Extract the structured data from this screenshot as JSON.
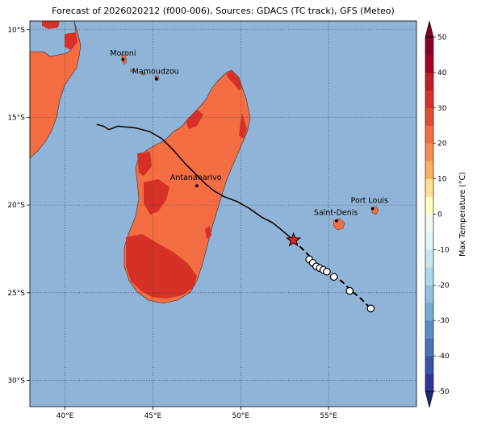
{
  "title": "Forecast of 2026020212 (f000-006), Sources: GDACS (TC track), GFS (Meteo)",
  "map": {
    "lon_range": [
      38,
      60
    ],
    "lat_range": [
      -31.5,
      -9.5
    ],
    "x_ticks": [
      {
        "value": 40,
        "label": "40°E"
      },
      {
        "value": 45,
        "label": "45°E"
      },
      {
        "value": 50,
        "label": "50°E"
      },
      {
        "value": 55,
        "label": "55°E"
      }
    ],
    "y_ticks": [
      {
        "value": -10,
        "label": "10°S"
      },
      {
        "value": -15,
        "label": "15°S"
      },
      {
        "value": -20,
        "label": "20°S"
      },
      {
        "value": -25,
        "label": "25°S"
      },
      {
        "value": -30,
        "label": "30°S"
      }
    ],
    "gridlines": true,
    "ocean_color": "#90b4d8",
    "land_warm_color": "#f46d43",
    "land_hot_color": "#d73027"
  },
  "cities": [
    {
      "name": "Moroni",
      "lon": 43.3,
      "lat": -11.7
    },
    {
      "name": "Mamoudzou",
      "lon": 45.2,
      "lat": -12.8
    },
    {
      "name": "Antananarivo",
      "lon": 47.5,
      "lat": -18.9
    },
    {
      "name": "Saint-Denis",
      "lon": 55.45,
      "lat": -20.9
    },
    {
      "name": "Port Louis",
      "lon": 57.5,
      "lat": -20.2
    }
  ],
  "track_past": [
    [
      41.8,
      -15.4
    ],
    [
      42.2,
      -15.5
    ],
    [
      42.5,
      -15.7
    ],
    [
      43.0,
      -15.5
    ],
    [
      44.0,
      -15.6
    ],
    [
      44.8,
      -15.8
    ],
    [
      45.5,
      -16.2
    ],
    [
      46.2,
      -16.9
    ],
    [
      46.9,
      -17.7
    ],
    [
      47.5,
      -18.3
    ],
    [
      48.0,
      -18.8
    ],
    [
      48.5,
      -19.2
    ],
    [
      49.0,
      -19.5
    ],
    [
      49.8,
      -19.8
    ],
    [
      50.5,
      -20.2
    ],
    [
      51.2,
      -20.7
    ],
    [
      51.8,
      -21.0
    ],
    [
      52.3,
      -21.4
    ],
    [
      53.0,
      -22.0
    ]
  ],
  "current_position": [
    53.0,
    -22.0
  ],
  "track_forecast": [
    [
      53.0,
      -22.0
    ],
    [
      53.6,
      -22.6
    ],
    [
      54.0,
      -23.0
    ],
    [
      54.3,
      -23.4
    ],
    [
      54.6,
      -23.7
    ],
    [
      55.0,
      -23.9
    ],
    [
      55.4,
      -24.1
    ],
    [
      55.8,
      -24.4
    ],
    [
      56.3,
      -24.9
    ],
    [
      56.8,
      -25.3
    ],
    [
      57.3,
      -25.8
    ]
  ],
  "forecast_points": [
    [
      53.9,
      -23.1
    ],
    [
      54.1,
      -23.3
    ],
    [
      54.3,
      -23.5
    ],
    [
      54.5,
      -23.6
    ],
    [
      54.7,
      -23.7
    ],
    [
      54.9,
      -23.8
    ],
    [
      55.3,
      -24.1
    ],
    [
      56.2,
      -24.9
    ],
    [
      57.4,
      -25.9
    ]
  ],
  "colorbar": {
    "label": "Max Temperature (°C)",
    "ticks": [
      50,
      40,
      30,
      20,
      10,
      0,
      -10,
      -20,
      -30,
      -40,
      -50
    ],
    "range": [
      -50,
      50
    ],
    "levels": [
      -50,
      -45,
      -40,
      -35,
      -30,
      -25,
      -20,
      -15,
      -10,
      -5,
      0,
      5,
      10,
      15,
      20,
      25,
      30,
      35,
      40,
      45,
      50
    ],
    "colors": [
      "#313695",
      "#3a54a4",
      "#4575b4",
      "#5b8fc3",
      "#74add1",
      "#8fc3dd",
      "#abd9e9",
      "#c7e6f0",
      "#e0f3f8",
      "#f0f9f4",
      "#ffffbf",
      "#fee090",
      "#fdae61",
      "#f88f52",
      "#f46d43",
      "#e34d34",
      "#d73027",
      "#c01d27",
      "#a50026",
      "#8a0026"
    ],
    "under_color": "#1e2875",
    "over_color": "#800026"
  }
}
